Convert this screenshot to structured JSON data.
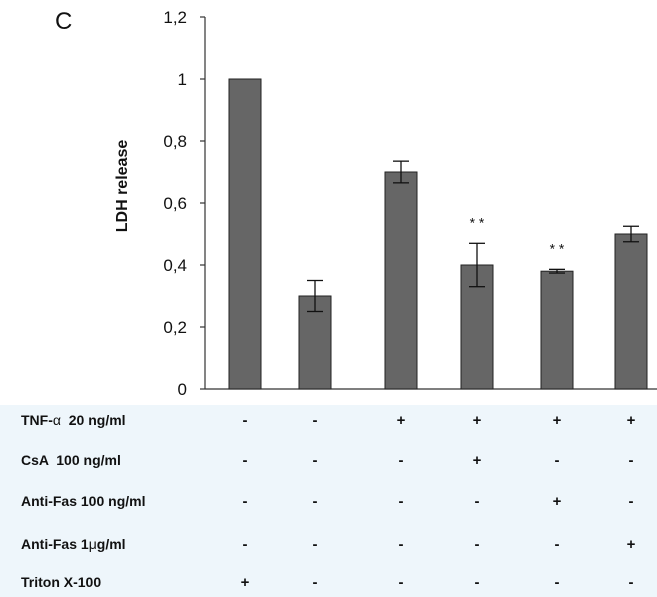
{
  "panel_label": "C",
  "chart_data": {
    "type": "bar",
    "ylabel": "LDH release",
    "ylim": [
      0,
      1.2
    ],
    "yticks": [
      "0",
      "0,2",
      "0,4",
      "0,6",
      "0,8",
      "1",
      "1,2"
    ],
    "ytick_values": [
      0,
      0.2,
      0.4,
      0.6,
      0.8,
      1.0,
      1.2
    ],
    "grid": false,
    "bar_color": "#666666",
    "values": [
      1.0,
      0.3,
      0.7,
      0.4,
      0.38,
      0.5
    ],
    "errors": [
      0,
      0.05,
      0.035,
      0.07,
      0.006,
      0.025
    ],
    "significance": [
      "",
      "",
      "",
      "* *",
      "* *",
      ""
    ]
  },
  "table": {
    "background": "#eef6fb",
    "rows": [
      {
        "label_main": "TNF-",
        "label_greek": "α",
        "label_rest": "  20 ng/ml",
        "values": [
          "-",
          "-",
          "+",
          "+",
          "+",
          "+"
        ]
      },
      {
        "label_main": "CsA  100 ng/ml",
        "label_greek": "",
        "label_rest": "",
        "values": [
          "-",
          "-",
          "-",
          "+",
          "-",
          "-"
        ]
      },
      {
        "label_main": "Anti-Fas 100 ng/ml",
        "label_greek": "",
        "label_rest": "",
        "values": [
          "-",
          "-",
          "-",
          "-",
          "+",
          "-"
        ]
      },
      {
        "label_main": "Anti-Fas 1",
        "label_greek": "μ",
        "label_rest": "g/ml",
        "values": [
          "-",
          "-",
          "-",
          "-",
          "-",
          "+"
        ]
      },
      {
        "label_main": "Triton X-100",
        "label_greek": "",
        "label_rest": "",
        "values": [
          "+",
          "-",
          "-",
          "-",
          "-",
          "-"
        ]
      }
    ]
  }
}
